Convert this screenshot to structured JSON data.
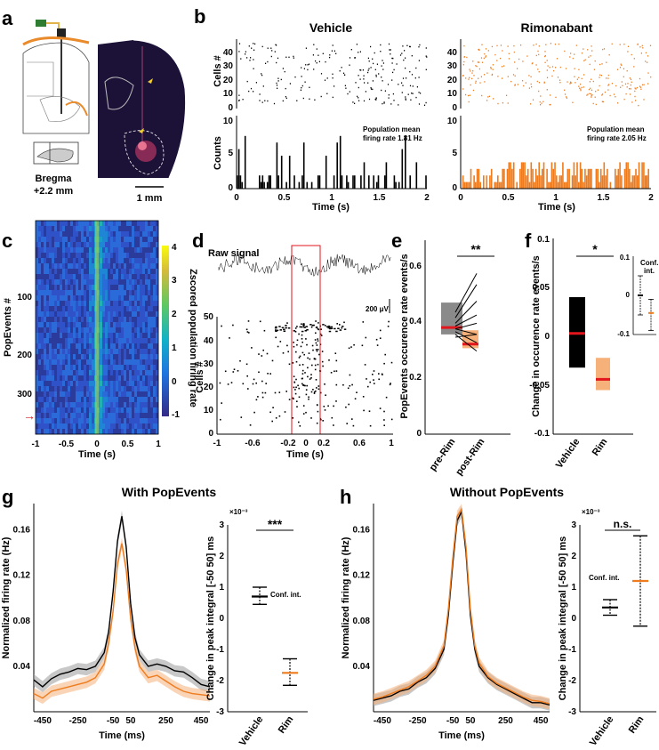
{
  "panel_labels": [
    "a",
    "b",
    "c",
    "d",
    "e",
    "f",
    "g",
    "h"
  ],
  "colors": {
    "vehicle": "#000000",
    "rim": "#ee7c1e",
    "rim_light": "#f6b07a",
    "median": "#e2161c",
    "grey": "#8a8a8a"
  },
  "panel_a": {
    "bregma": "Bregma",
    "bregma_value": "+2.2 mm",
    "scale_bar": "1 mm"
  },
  "panel_b": {
    "vehicle_title": "Vehicle",
    "rim_title": "Rimonabant",
    "cells_label": "Cells #",
    "counts_label": "Counts",
    "time_label": "Time (s)",
    "vehicle_rate_line1": "Population mean",
    "vehicle_rate_line2": "firing rate 1.81 Hz",
    "rim_rate_line1": "Population mean",
    "rim_rate_line2": "firing rate 2.05 Hz",
    "x_ticks": [
      "0",
      "0.5",
      "1",
      "1.5",
      "2"
    ],
    "raster_y_ticks": [
      "40",
      "30",
      "20",
      "10",
      "0"
    ],
    "count_y_ticks": [
      "10",
      "5",
      "0"
    ]
  },
  "panel_c": {
    "y_label": "PopEvents #",
    "x_label": "Time (s)",
    "colorbar_label": "Zscored population firing rate",
    "y_ticks": [
      "100",
      "200",
      "300"
    ],
    "x_ticks": [
      "-1",
      "-0.5",
      "0",
      "0.5",
      "1"
    ],
    "cb_ticks": [
      "4",
      "3",
      "2",
      "1",
      "0",
      "-1"
    ],
    "arrow": "→"
  },
  "panel_d": {
    "raw_label": "Raw signal",
    "scale": "200 μV",
    "y_label": "Cells #",
    "x_label": "Time (s)",
    "y_ticks": [
      "50",
      "40",
      "30",
      "20",
      "10",
      "0"
    ],
    "x_ticks": [
      "-1",
      "-0.6",
      "-0.2",
      "0",
      "0.2",
      "0.6",
      "1"
    ]
  },
  "panel_e": {
    "y_label": "PopEvents occurence rate events/s",
    "y_ticks": [
      "0.6",
      "0.4",
      "0.2",
      "0"
    ],
    "x_ticks": [
      "pre-Rim",
      "post-Rim"
    ],
    "sig": "**"
  },
  "panel_f": {
    "y_label": "Change in occurence rate events/s",
    "y_ticks": [
      "0.1",
      "0.05",
      "0",
      "-0.05",
      "-0.1"
    ],
    "x_ticks": [
      "Vehicle",
      "Rim"
    ],
    "sig": "*",
    "inset_title": "Conf.\nint.",
    "inset_ticks": [
      "0.1",
      "0",
      "-0.1"
    ]
  },
  "panel_g": {
    "title": "With PopEvents",
    "y_label": "Normalized firing rate (Hz)",
    "x_label": "Time (ms)",
    "y_ticks": [
      "0.16",
      "0.12",
      "0.08",
      "0.04"
    ],
    "x_ticks": [
      "-450",
      "-250",
      "-50",
      "50",
      "250",
      "450"
    ],
    "right_y_label": "Change in peak integral [-50 50] ms",
    "exponent": "×10⁻³",
    "right_y_ticks": [
      "3",
      "2",
      "1",
      "0",
      "-1",
      "-2",
      "-3"
    ],
    "right_x_ticks": [
      "Vehicle",
      "Rim"
    ],
    "sig": "***",
    "conf_label": "Conf. int."
  },
  "panel_h": {
    "title": "Without PopEvents",
    "y_label": "Normalized firing rate (Hz)",
    "x_label": "Time (ms)",
    "y_ticks": [
      "0.16",
      "0.12",
      "0.08",
      "0.04"
    ],
    "x_ticks": [
      "-450",
      "-250",
      "-50",
      "50",
      "250",
      "450"
    ],
    "right_y_label": "Change in peak integral [-50 50] ms",
    "exponent": "×10⁻³",
    "right_y_ticks": [
      "3",
      "2",
      "1",
      "0",
      "-1",
      "-2",
      "-3"
    ],
    "right_x_ticks": [
      "Vehicle",
      "Rim"
    ],
    "sig": "n.s.",
    "conf_label": "Conf. int."
  },
  "chart_data": [
    {
      "panel": "e",
      "type": "box",
      "title": "PopEvents occurence rate",
      "ylabel": "PopEvents occurence rate events/s",
      "ylim": [
        0,
        0.7
      ],
      "categories": [
        "pre-Rim",
        "post-Rim"
      ],
      "boxes": [
        {
          "name": "pre-Rim",
          "q1": 0.36,
          "median": 0.385,
          "q3": 0.475
        },
        {
          "name": "post-Rim",
          "q1": 0.31,
          "median": 0.325,
          "q3": 0.375
        }
      ],
      "pairs": [
        [
          0.44,
          0.58
        ],
        [
          0.42,
          0.54
        ],
        [
          0.4,
          0.48
        ],
        [
          0.39,
          0.43
        ],
        [
          0.38,
          0.4
        ],
        [
          0.38,
          0.36
        ],
        [
          0.37,
          0.33
        ],
        [
          0.36,
          0.3
        ],
        [
          0.35,
          0.36
        ]
      ]
    },
    {
      "panel": "f",
      "type": "box",
      "ylabel": "Change in occurence rate events/s",
      "ylim": [
        -0.1,
        0.1
      ],
      "categories": [
        "Vehicle",
        "Rim"
      ],
      "boxes": [
        {
          "name": "Vehicle",
          "low": -0.032,
          "median": 0.003,
          "high": 0.04
        },
        {
          "name": "Rim",
          "low": -0.055,
          "median": -0.044,
          "high": -0.022
        }
      ],
      "inset": {
        "ylim": [
          -0.1,
          0.1
        ],
        "vehicle": {
          "low": -0.05,
          "mid": 0.0,
          "high": 0.05
        },
        "rim": {
          "low": -0.09,
          "mid": -0.045,
          "high": -0.01
        }
      }
    },
    {
      "panel": "g",
      "type": "line",
      "title": "With PopEvents",
      "xlabel": "Time (ms)",
      "ylabel": "Normalized firing rate (Hz)",
      "xlim": [
        -500,
        500
      ],
      "ylim": [
        0,
        0.18
      ],
      "x": [
        -500,
        -450,
        -400,
        -350,
        -300,
        -250,
        -200,
        -150,
        -100,
        -75,
        -50,
        -25,
        0,
        25,
        50,
        75,
        100,
        150,
        200,
        250,
        300,
        350,
        400,
        450,
        500
      ],
      "series": [
        {
          "name": "Vehicle",
          "values": [
            0.028,
            0.022,
            0.029,
            0.033,
            0.035,
            0.038,
            0.037,
            0.04,
            0.052,
            0.07,
            0.105,
            0.15,
            0.172,
            0.145,
            0.095,
            0.065,
            0.05,
            0.04,
            0.042,
            0.04,
            0.036,
            0.035,
            0.03,
            0.024,
            0.022
          ]
        },
        {
          "name": "Rim",
          "values": [
            0.016,
            0.012,
            0.018,
            0.02,
            0.022,
            0.024,
            0.026,
            0.03,
            0.042,
            0.06,
            0.088,
            0.13,
            0.148,
            0.125,
            0.082,
            0.056,
            0.04,
            0.03,
            0.032,
            0.027,
            0.022,
            0.018,
            0.016,
            0.015,
            0.014
          ]
        }
      ]
    },
    {
      "panel": "g-right",
      "type": "errorbar",
      "ylabel": "Change in peak integral [-50 50] ms",
      "ylim": [
        -3,
        3
      ],
      "scale": "x1e-3",
      "categories": [
        "Vehicle",
        "Rim"
      ],
      "intervals": [
        {
          "name": "Vehicle",
          "low": 0.45,
          "mid": 0.7,
          "high": 1.0
        },
        {
          "name": "Rim",
          "low": -2.15,
          "mid": -1.75,
          "high": -1.3
        }
      ]
    },
    {
      "panel": "h",
      "type": "line",
      "title": "Without PopEvents",
      "xlabel": "Time (ms)",
      "ylabel": "Normalized firing rate (Hz)",
      "xlim": [
        -500,
        500
      ],
      "ylim": [
        0,
        0.18
      ],
      "x": [
        -500,
        -450,
        -400,
        -350,
        -300,
        -250,
        -200,
        -150,
        -100,
        -75,
        -50,
        -25,
        0,
        25,
        50,
        75,
        100,
        150,
        200,
        250,
        300,
        350,
        400,
        450,
        500
      ],
      "series": [
        {
          "name": "Vehicle",
          "values": [
            0.01,
            0.012,
            0.014,
            0.018,
            0.02,
            0.026,
            0.03,
            0.038,
            0.055,
            0.085,
            0.13,
            0.168,
            0.176,
            0.14,
            0.085,
            0.055,
            0.04,
            0.03,
            0.024,
            0.02,
            0.016,
            0.012,
            0.008,
            0.008,
            0.006
          ]
        },
        {
          "name": "Rim",
          "values": [
            0.011,
            0.013,
            0.016,
            0.019,
            0.022,
            0.027,
            0.032,
            0.04,
            0.058,
            0.09,
            0.135,
            0.172,
            0.178,
            0.145,
            0.09,
            0.058,
            0.043,
            0.031,
            0.025,
            0.021,
            0.017,
            0.013,
            0.01,
            0.009,
            0.007
          ]
        }
      ]
    },
    {
      "panel": "h-right",
      "type": "errorbar",
      "ylabel": "Change in peak integral [-50 50] ms",
      "ylim": [
        -3,
        3
      ],
      "scale": "x1e-3",
      "categories": [
        "Vehicle",
        "Rim"
      ],
      "intervals": [
        {
          "name": "Vehicle",
          "low": 0.1,
          "mid": 0.35,
          "high": 0.6
        },
        {
          "name": "Rim",
          "low": -0.25,
          "mid": 1.2,
          "high": 2.65
        }
      ]
    }
  ]
}
